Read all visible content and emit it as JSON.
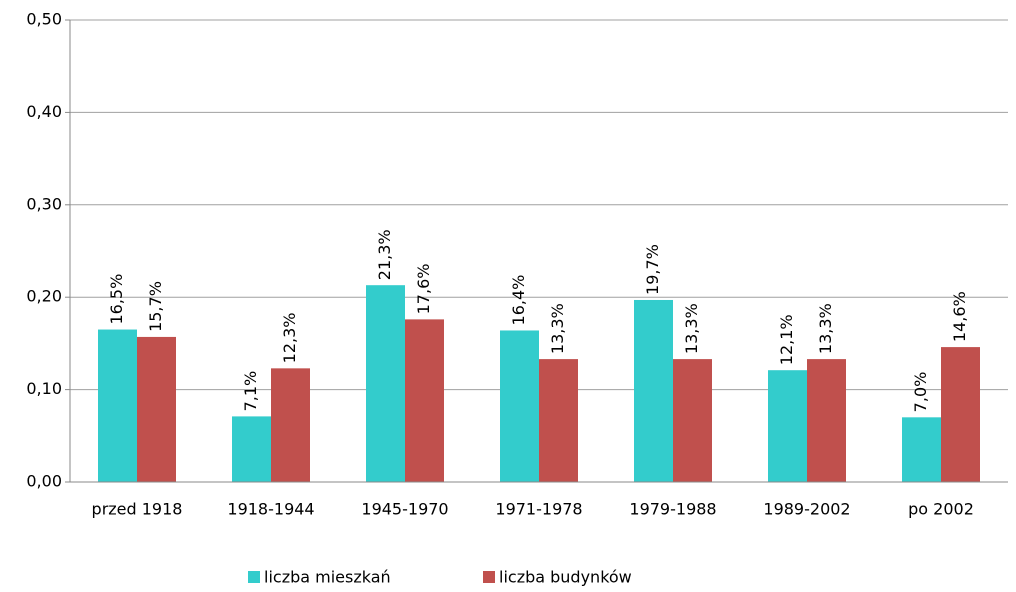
{
  "chart_data": {
    "type": "bar",
    "categories": [
      "przed 1918",
      "1918-1944",
      "1945-1970",
      "1971-1978",
      "1979-1988",
      "1989-2002",
      "po 2002"
    ],
    "series": [
      {
        "name": "liczba mieszkań",
        "color": "#33cccc",
        "values": [
          0.165,
          0.071,
          0.213,
          0.164,
          0.197,
          0.121,
          0.07
        ],
        "value_labels": [
          "16,5%",
          "7,1%",
          "21,3%",
          "16,4%",
          "19,7%",
          "12,1%",
          "7,0%"
        ]
      },
      {
        "name": "liczba budynków",
        "color": "#c0504d",
        "values": [
          0.157,
          0.123,
          0.176,
          0.133,
          0.133,
          0.133,
          0.146
        ],
        "value_labels": [
          "15,7%",
          "12,3%",
          "17,6%",
          "13,3%",
          "13,3%",
          "13,3%",
          "14,6%"
        ]
      }
    ],
    "ylim": [
      0,
      0.5
    ],
    "yticks": [
      {
        "value": 0,
        "label": "0,00"
      },
      {
        "value": 0.1,
        "label": "0,10"
      },
      {
        "value": 0.2,
        "label": "0,20"
      },
      {
        "value": 0.3,
        "label": "0,30"
      },
      {
        "value": 0.4,
        "label": "0,40"
      },
      {
        "value": 0.5,
        "label": "0,50"
      }
    ],
    "grid": true,
    "legend": "bottom"
  }
}
